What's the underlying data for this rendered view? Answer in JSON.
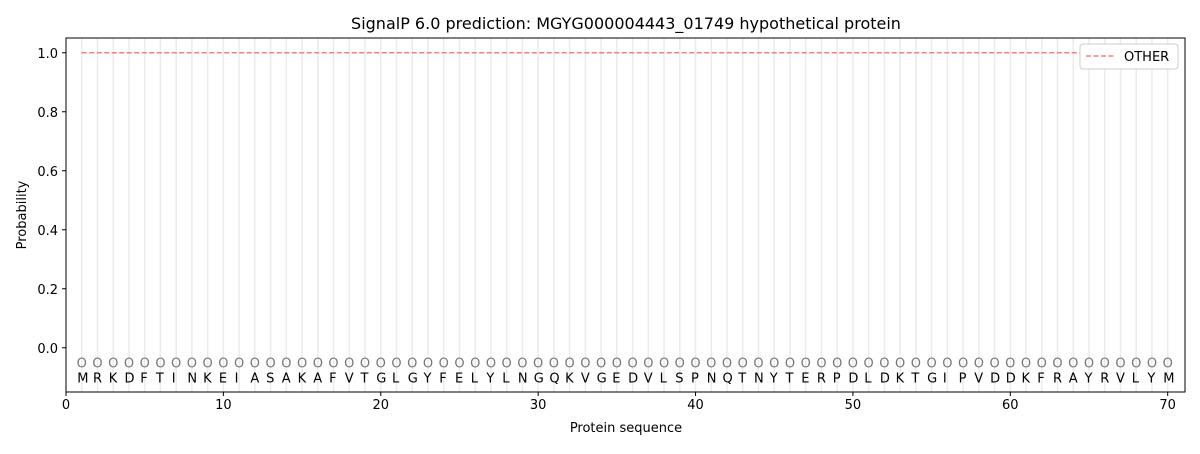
{
  "chart_data": {
    "type": "line",
    "title": "SignalP 6.0 prediction: MGYG000004443_01749 hypothetical protein",
    "xlabel": "Protein sequence",
    "ylabel": "Probability",
    "xlim": [
      0,
      71.1
    ],
    "ylim": [
      -0.15,
      1.05
    ],
    "xticks": [
      0,
      10,
      20,
      30,
      40,
      50,
      60,
      70
    ],
    "yticks": [
      0.0,
      0.2,
      0.4,
      0.6,
      0.8,
      1.0
    ],
    "ytick_labels": [
      "0.0",
      "0.2",
      "0.4",
      "0.6",
      "0.8",
      "1.0"
    ],
    "grid": "vertical per residue",
    "legend_position": "top-right",
    "sequence": "MRKDFTINKEIASAKAFVTGLGYFELYLNGQKVGEDVLSPNQTNYTERPDLDKTGIPVDDKFRAYRVLYM",
    "region_label": "O",
    "series": [
      {
        "name": "OTHER",
        "color": "#f08080",
        "style": "dashed",
        "x_start": 1,
        "x_end": 70,
        "value": 1.0
      }
    ]
  }
}
